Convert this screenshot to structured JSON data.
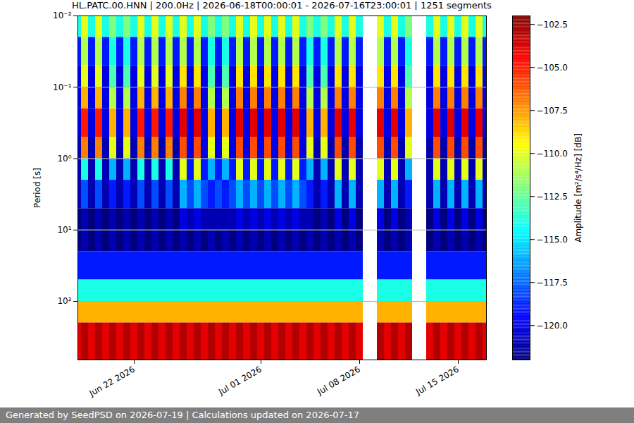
{
  "chart_data": {
    "type": "heatmap",
    "title": "HL.PATC.00.HNN | 200.0Hz | 2026-06-18T00:00:01 - 2026-07-16T23:00:01 | 1251 segments",
    "caption": "Generated by SeedPSD on 2026-07-19 | Calculations updated on 2026-07-17",
    "y_label": "Period [s]",
    "log": "y",
    "grid": "y",
    "xlim": [
      "2026-06-18T00:00:00Z",
      "2026-07-17T00:00:00Z"
    ],
    "xticks": [
      {
        "value": "2026-06-22",
        "label": "Jun 22 2026"
      },
      {
        "value": "2026-07-01",
        "label": "Jul 01 2026"
      },
      {
        "value": "2026-07-08",
        "label": "Jul 08 2026"
      },
      {
        "value": "2026-07-15",
        "label": "Jul 15 2026"
      }
    ],
    "ylim": [
      0.01,
      660
    ],
    "yticks": [
      {
        "value": 0.01,
        "label": "10⁻²"
      },
      {
        "value": 0.1,
        "label": "10⁻¹"
      },
      {
        "value": 1,
        "label": "10⁰"
      },
      {
        "value": 10,
        "label": "10¹"
      },
      {
        "value": 100,
        "label": "10²"
      }
    ],
    "x_edges": [
      "2026-06-18T00:00:00Z",
      "2026-06-18T06:00:00Z",
      "2026-06-18T18:00:00Z",
      "2026-06-19T06:00:00Z",
      "2026-06-19T18:00:00Z",
      "2026-06-20T06:00:00Z",
      "2026-06-20T18:00:00Z",
      "2026-06-21T06:00:00Z",
      "2026-06-21T18:00:00Z",
      "2026-06-22T06:00:00Z",
      "2026-06-22T18:00:00Z",
      "2026-06-23T06:00:00Z",
      "2026-06-23T18:00:00Z",
      "2026-06-24T06:00:00Z",
      "2026-06-24T18:00:00Z",
      "2026-06-25T06:00:00Z",
      "2026-06-25T18:00:00Z",
      "2026-06-26T06:00:00Z",
      "2026-06-26T18:00:00Z",
      "2026-06-27T06:00:00Z",
      "2026-06-27T18:00:00Z",
      "2026-06-28T06:00:00Z",
      "2026-06-28T18:00:00Z",
      "2026-06-29T06:00:00Z",
      "2026-06-29T18:00:00Z",
      "2026-06-30T06:00:00Z",
      "2026-06-30T18:00:00Z",
      "2026-07-01T06:00:00Z",
      "2026-07-01T18:00:00Z",
      "2026-07-02T06:00:00Z",
      "2026-07-02T18:00:00Z",
      "2026-07-03T06:00:00Z",
      "2026-07-03T18:00:00Z",
      "2026-07-04T06:00:00Z",
      "2026-07-04T18:00:00Z",
      "2026-07-05T06:00:00Z",
      "2026-07-05T18:00:00Z",
      "2026-07-06T06:00:00Z",
      "2026-07-06T18:00:00Z",
      "2026-07-07T06:00:00Z",
      "2026-07-07T18:00:00Z",
      "2026-07-08T06:00:00Z",
      "2026-07-08T18:00:00Z",
      "2026-07-09T06:00:00Z",
      "2026-07-09T18:00:00Z",
      "2026-07-10T06:00:00Z",
      "2026-07-10T18:00:00Z",
      "2026-07-11T06:00:00Z",
      "2026-07-11T18:00:00Z",
      "2026-07-12T06:00:00Z",
      "2026-07-12T18:00:00Z",
      "2026-07-13T06:00:00Z",
      "2026-07-13T18:00:00Z",
      "2026-07-14T06:00:00Z",
      "2026-07-14T18:00:00Z",
      "2026-07-15T06:00:00Z",
      "2026-07-15T18:00:00Z",
      "2026-07-16T06:00:00Z",
      "2026-07-16T18:00:00Z",
      "2026-07-17T00:00:00Z"
    ],
    "y_edges": [
      0.01,
      0.02,
      0.05,
      0.1,
      0.2,
      0.5,
      1,
      2,
      5,
      10,
      20,
      50,
      100,
      200,
      660
    ],
    "values": [
      [
        -114,
        -119,
        -120,
        -120,
        -120,
        -121,
        -121,
        -121,
        -122,
        -122,
        -119,
        -114,
        -108,
        -104
      ],
      [
        -110,
        -111,
        -110,
        -108,
        -105,
        -107,
        -114,
        -118,
        -121,
        -121,
        -119,
        -114,
        -108,
        -103
      ],
      [
        -114,
        -119,
        -120,
        -120,
        -120,
        -121,
        -121,
        -121,
        -122,
        -122,
        -119,
        -114,
        -108,
        -104
      ],
      [
        -110,
        -111,
        -110,
        -108,
        -105,
        -107,
        -114,
        -118,
        -121,
        -121,
        -119,
        -114,
        -108,
        -103
      ],
      [
        -114,
        -119,
        -120,
        -120,
        -120,
        -121,
        -121,
        -121,
        -122,
        -122,
        -119,
        -114,
        -108,
        -104
      ],
      [
        -112,
        -114,
        -113,
        -111,
        -108,
        -110,
        -116,
        -119,
        -121,
        -121,
        -119,
        -114,
        -108,
        -103
      ],
      [
        -114,
        -119,
        -120,
        -120,
        -120,
        -121,
        -121,
        -121,
        -122,
        -122,
        -119,
        -114,
        -108,
        -104
      ],
      [
        -112,
        -114,
        -113,
        -111,
        -108,
        -110,
        -116,
        -119,
        -121,
        -121,
        -119,
        -114,
        -108,
        -103
      ],
      [
        -114,
        -119,
        -120,
        -120,
        -120,
        -121,
        -121,
        -121,
        -122,
        -122,
        -119,
        -114,
        -108,
        -104
      ],
      [
        -110,
        -111,
        -110,
        -108,
        -105,
        -107,
        -114,
        -118,
        -121,
        -121,
        -119,
        -114,
        -108,
        -103
      ],
      [
        -114,
        -119,
        -120,
        -120,
        -120,
        -121,
        -121,
        -121,
        -122,
        -122,
        -119,
        -114,
        -108,
        -104
      ],
      [
        -110,
        -111,
        -110,
        -108,
        -105,
        -107,
        -114,
        -118,
        -121,
        -121,
        -119,
        -114,
        -108,
        -103
      ],
      [
        -114,
        -119,
        -120,
        -120,
        -120,
        -121,
        -121,
        -121,
        -122,
        -122,
        -119,
        -114,
        -108,
        -104
      ],
      [
        -110,
        -111,
        -110,
        -108,
        -105,
        -107,
        -114,
        -118,
        -121,
        -121,
        -119,
        -114,
        -108,
        -103
      ],
      [
        -114,
        -119,
        -120,
        -120,
        -120,
        -121,
        -121,
        -121,
        -122,
        -122,
        -119,
        -114,
        -108,
        -104
      ],
      [
        -110,
        -111,
        -109,
        -107,
        -104,
        -106,
        -110,
        -116,
        -120,
        -121,
        -119,
        -114,
        -108,
        -103
      ],
      [
        -114,
        -119,
        -120,
        -120,
        -120,
        -120,
        -119,
        -118,
        -121,
        -122,
        -119,
        -114,
        -108,
        -104
      ],
      [
        -110,
        -111,
        -109,
        -107,
        -104,
        -106,
        -110,
        -116,
        -120,
        -121,
        -119,
        -114,
        -108,
        -103
      ],
      [
        -114,
        -119,
        -120,
        -120,
        -120,
        -120,
        -119,
        -118,
        -121,
        -122,
        -119,
        -114,
        -108,
        -104
      ],
      [
        -112,
        -114,
        -113,
        -111,
        -108,
        -110,
        -116,
        -119,
        -121,
        -121,
        -119,
        -114,
        -108,
        -103
      ],
      [
        -114,
        -119,
        -120,
        -120,
        -120,
        -120,
        -119,
        -118,
        -121,
        -122,
        -119,
        -114,
        -108,
        -104
      ],
      [
        -112,
        -114,
        -113,
        -111,
        -108,
        -110,
        -116,
        -119,
        -121,
        -121,
        -119,
        -114,
        -108,
        -103
      ],
      [
        -114,
        -119,
        -120,
        -120,
        -120,
        -120,
        -119,
        -118,
        -121,
        -122,
        -119,
        -114,
        -108,
        -104
      ],
      [
        -110,
        -111,
        -109,
        -107,
        -104,
        -106,
        -110,
        -116,
        -120,
        -121,
        -119,
        -114,
        -108,
        -103
      ],
      [
        -114,
        -119,
        -120,
        -120,
        -120,
        -120,
        -119,
        -118,
        -121,
        -122,
        -119,
        -114,
        -108,
        -104
      ],
      [
        -110,
        -111,
        -109,
        -107,
        -104,
        -106,
        -110,
        -116,
        -120,
        -121,
        -119,
        -114,
        -108,
        -103
      ],
      [
        -114,
        -119,
        -120,
        -120,
        -120,
        -120,
        -119,
        -118,
        -121,
        -122,
        -119,
        -114,
        -108,
        -104
      ],
      [
        -110,
        -111,
        -109,
        -107,
        -104,
        -106,
        -110,
        -116,
        -120,
        -121,
        -119,
        -114,
        -108,
        -103
      ],
      [
        -114,
        -119,
        -120,
        -120,
        -120,
        -120,
        -119,
        -118,
        -121,
        -122,
        -119,
        -114,
        -108,
        -104
      ],
      [
        -110,
        -111,
        -109,
        -107,
        -104,
        -106,
        -110,
        -116,
        -120,
        -121,
        -119,
        -114,
        -108,
        -103
      ],
      [
        -114,
        -119,
        -120,
        -120,
        -120,
        -120,
        -119,
        -118,
        -121,
        -122,
        -119,
        -114,
        -108,
        -104
      ],
      [
        -110,
        -111,
        -109,
        -107,
        -104,
        -106,
        -110,
        -116,
        -120,
        -121,
        -119,
        -114,
        -108,
        -103
      ],
      [
        -114,
        -119,
        -120,
        -120,
        -120,
        -120,
        -119,
        -118,
        -121,
        -122,
        -119,
        -114,
        -108,
        -104
      ],
      [
        -112,
        -114,
        -113,
        -111,
        -108,
        -110,
        -116,
        -119,
        -121,
        -121,
        -119,
        -114,
        -108,
        -103
      ],
      [
        -114,
        -119,
        -120,
        -120,
        -120,
        -121,
        -121,
        -121,
        -122,
        -122,
        -119,
        -114,
        -108,
        -104
      ],
      [
        -112,
        -114,
        -113,
        -111,
        -108,
        -110,
        -116,
        -119,
        -121,
        -121,
        -119,
        -114,
        -108,
        -103
      ],
      [
        -114,
        -119,
        -120,
        -120,
        -120,
        -121,
        -121,
        -121,
        -122,
        -122,
        -119,
        -114,
        -108,
        -104
      ],
      [
        -110,
        -111,
        -109,
        -107,
        -104,
        -106,
        -110,
        -116,
        -120,
        -121,
        -119,
        -114,
        -108,
        -103
      ],
      [
        -114,
        -119,
        -120,
        -120,
        -120,
        -121,
        -121,
        -121,
        -122,
        -122,
        -119,
        -114,
        -108,
        -104
      ],
      [
        -110,
        -111,
        -109,
        -107,
        -104,
        -106,
        -110,
        -116,
        -120,
        -121,
        -119,
        -114,
        -108,
        -103
      ],
      [
        -114,
        -119,
        -120,
        -120,
        -120,
        -121,
        -121,
        -121,
        -122,
        -122,
        -119,
        -114,
        -108,
        -104
      ],
      null,
      null,
      [
        -110,
        -111,
        -109,
        -107,
        -104,
        -106,
        -110,
        -116,
        -120,
        -121,
        -119,
        -114,
        -108,
        -103
      ],
      [
        -114,
        -119,
        -120,
        -120,
        -120,
        -121,
        -121,
        -121,
        -122,
        -122,
        -119,
        -114,
        -108,
        -104
      ],
      [
        -110,
        -111,
        -109,
        -107,
        -104,
        -106,
        -110,
        -116,
        -120,
        -121,
        -119,
        -114,
        -108,
        -103
      ],
      [
        -114,
        -119,
        -120,
        -120,
        -120,
        -121,
        -121,
        -121,
        -122,
        -122,
        -119,
        -114,
        -108,
        -104
      ],
      [
        -112,
        -114,
        -113,
        -111,
        -108,
        -110,
        -116,
        -119,
        -121,
        -121,
        -119,
        -114,
        -108,
        -103
      ],
      null,
      null,
      [
        -114,
        -119,
        -120,
        -120,
        -120,
        -121,
        -121,
        -121,
        -122,
        -122,
        -119,
        -114,
        -108,
        -104
      ],
      [
        -110,
        -111,
        -109,
        -107,
        -104,
        -106,
        -110,
        -116,
        -120,
        -121,
        -119,
        -114,
        -108,
        -103
      ],
      [
        -114,
        -119,
        -120,
        -120,
        -120,
        -121,
        -121,
        -121,
        -122,
        -122,
        -119,
        -114,
        -108,
        -104
      ],
      [
        -110,
        -111,
        -109,
        -107,
        -104,
        -106,
        -110,
        -116,
        -120,
        -121,
        -119,
        -114,
        -108,
        -103
      ],
      [
        -114,
        -119,
        -120,
        -120,
        -120,
        -121,
        -121,
        -121,
        -122,
        -122,
        -119,
        -114,
        -108,
        -104
      ],
      [
        -110,
        -111,
        -109,
        -107,
        -104,
        -106,
        -110,
        -116,
        -120,
        -121,
        -119,
        -114,
        -108,
        -103
      ],
      [
        -114,
        -119,
        -120,
        -120,
        -120,
        -121,
        -121,
        -121,
        -122,
        -122,
        -119,
        -114,
        -108,
        -104
      ],
      [
        -110,
        -111,
        -109,
        -107,
        -104,
        -106,
        -110,
        -116,
        -120,
        -121,
        -119,
        -114,
        -108,
        -103
      ],
      [
        -114,
        -119,
        -120,
        -120,
        -120,
        -121,
        -121,
        -121,
        -122,
        -122,
        -119,
        -114,
        -108,
        -104
      ]
    ],
    "colorbar": {
      "label": "Amplitude [m²/s⁴/Hz] [dB]",
      "range": [
        -122,
        -102
      ],
      "ticks": [
        {
          "value": -102.5,
          "label": "−102.5"
        },
        {
          "value": -105,
          "label": "−105.0"
        },
        {
          "value": -107.5,
          "label": "−107.5"
        },
        {
          "value": -110,
          "label": "−110.0"
        },
        {
          "value": -112.5,
          "label": "−112.5"
        },
        {
          "value": -115,
          "label": "−115.0"
        },
        {
          "value": -117.5,
          "label": "−117.5"
        },
        {
          "value": -120,
          "label": "−120.0"
        }
      ]
    }
  }
}
